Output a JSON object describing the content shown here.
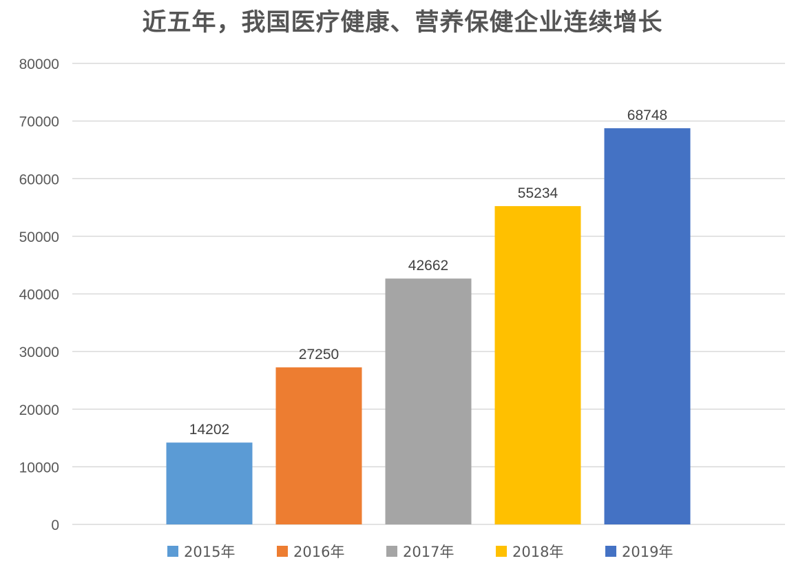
{
  "title": "近五年，我国医疗健康、营养保健企业连续增长",
  "chart_data": {
    "type": "bar",
    "title": "近五年，我国医疗健康、营养保健企业连续增长",
    "categories": [
      "2015年",
      "2016年",
      "2017年",
      "2018年",
      "2019年"
    ],
    "values": [
      14202,
      27250,
      42662,
      55234,
      68748
    ],
    "colors": [
      "#5B9BD5",
      "#ED7D31",
      "#A5A5A5",
      "#FFC000",
      "#4472C4"
    ],
    "ylim": [
      0,
      80000
    ],
    "yticks": [
      "0",
      "10000",
      "20000",
      "30000",
      "40000",
      "50000",
      "60000",
      "70000",
      "80000"
    ],
    "grid": true,
    "legend": "bottom",
    "xlabel": "",
    "ylabel": ""
  }
}
